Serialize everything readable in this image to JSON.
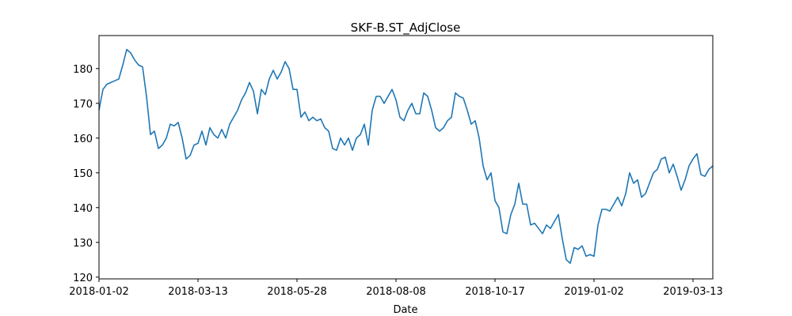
{
  "chart_data": {
    "type": "line",
    "title": "SKF-B.ST_AdjClose",
    "x_label": "Date",
    "categories": [
      "2018-01-02",
      null,
      null,
      null,
      null,
      null,
      null,
      null,
      null,
      null,
      null,
      null,
      null,
      null,
      null,
      null,
      null,
      null,
      null,
      null,
      null,
      null,
      null,
      null,
      null,
      "2018-03-13",
      null,
      null,
      null,
      null,
      null,
      null,
      null,
      null,
      null,
      null,
      null,
      null,
      null,
      null,
      null,
      null,
      null,
      null,
      null,
      null,
      null,
      null,
      null,
      null,
      "2018-05-28",
      null,
      null,
      null,
      null,
      null,
      null,
      null,
      null,
      null,
      null,
      null,
      null,
      null,
      null,
      null,
      null,
      null,
      null,
      null,
      null,
      null,
      null,
      null,
      null,
      "2018-08-08",
      null,
      null,
      null,
      null,
      null,
      null,
      null,
      null,
      null,
      null,
      null,
      null,
      null,
      null,
      null,
      null,
      null,
      null,
      null,
      null,
      null,
      null,
      null,
      null,
      "2018-10-17",
      null,
      null,
      null,
      null,
      null,
      null,
      null,
      null,
      null,
      null,
      null,
      null,
      null,
      null,
      null,
      null,
      null,
      null,
      null,
      null,
      null,
      null,
      null,
      null,
      "2019-01-02",
      null,
      null,
      null,
      null,
      null,
      null,
      null,
      null,
      null,
      null,
      null,
      null,
      null,
      null,
      null,
      null,
      null,
      null,
      null,
      null,
      null,
      null,
      null,
      null,
      "2019-03-13",
      null,
      null,
      null,
      null,
      null
    ],
    "values": [
      168,
      174,
      175.5,
      176,
      176.5,
      177,
      181,
      185.5,
      184.5,
      182.5,
      181,
      180.5,
      172,
      161,
      162,
      157,
      158,
      160,
      164,
      163.5,
      164.5,
      160,
      154,
      155,
      158,
      158.5,
      162,
      158,
      163,
      161,
      160,
      162.5,
      160,
      164,
      166,
      168,
      171,
      173,
      176,
      173.5,
      167,
      174,
      172.5,
      177,
      179.5,
      177,
      179,
      182,
      180,
      174,
      174,
      166,
      167.5,
      165,
      166,
      165,
      165.5,
      163,
      162,
      157,
      156.5,
      160,
      158,
      160,
      156.5,
      160,
      161,
      164,
      158,
      168,
      172,
      172,
      170,
      172,
      174,
      171,
      166,
      165,
      168,
      170,
      167,
      167,
      173,
      172,
      168,
      163,
      162,
      163,
      165,
      166,
      173,
      172,
      171.5,
      168,
      164,
      165,
      160,
      152,
      148,
      150,
      142,
      140,
      133,
      132.5,
      138,
      141,
      147,
      141,
      141,
      135,
      135.5,
      134,
      132.5,
      135,
      134,
      136,
      138,
      131,
      125,
      124,
      128.5,
      128,
      129,
      126,
      126.5,
      126,
      135,
      139.5,
      139.5,
      139,
      141,
      143,
      140.5,
      144,
      150,
      147,
      148,
      143,
      144,
      147,
      150,
      151,
      154,
      154.5,
      150,
      152.5,
      149,
      145,
      148,
      152,
      154,
      155.5,
      149.5,
      149,
      151,
      152
    ],
    "color": "#1f77b4",
    "xlim": [
      0,
      155
    ],
    "ylim": [
      119.5,
      189.5
    ],
    "yticks": [
      120,
      130,
      140,
      150,
      160,
      170,
      180
    ]
  }
}
